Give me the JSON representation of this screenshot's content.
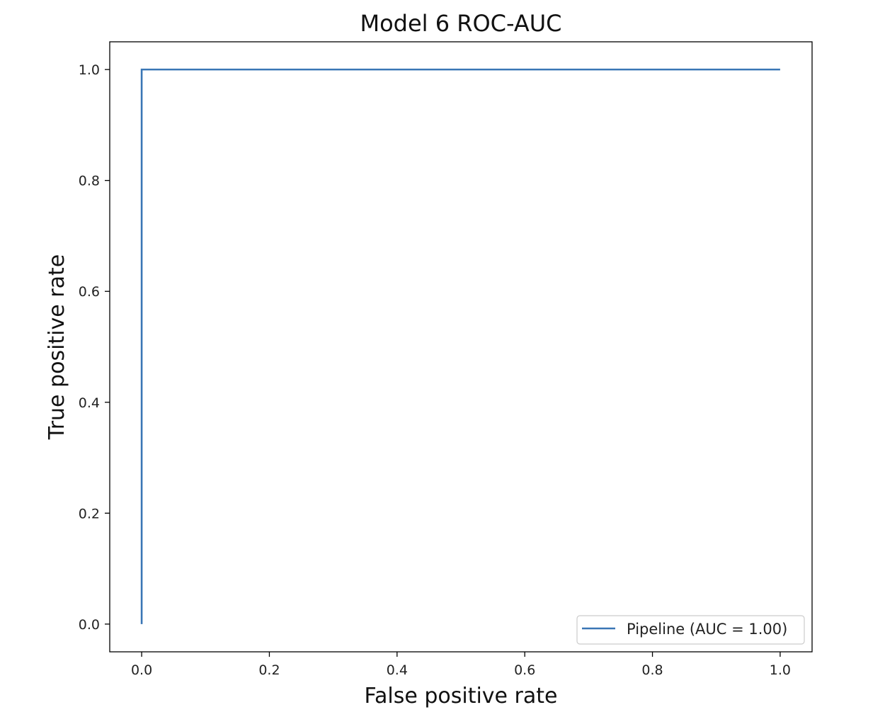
{
  "chart_data": {
    "type": "line",
    "title": "Model 6 ROC-AUC",
    "xlabel": "False positive rate",
    "ylabel": "True positive rate",
    "xlim": [
      -0.05,
      1.05
    ],
    "ylim": [
      -0.05,
      1.05
    ],
    "xticks": [
      0.0,
      0.2,
      0.4,
      0.6,
      0.8,
      1.0
    ],
    "xtick_labels": [
      "0.0",
      "0.2",
      "0.4",
      "0.6",
      "0.8",
      "1.0"
    ],
    "yticks": [
      0.0,
      0.2,
      0.4,
      0.6,
      0.8,
      1.0
    ],
    "ytick_labels": [
      "0.0",
      "0.2",
      "0.4",
      "0.6",
      "0.8",
      "1.0"
    ],
    "grid": false,
    "legend_position": "lower-right",
    "series": [
      {
        "name": "Pipeline (AUC = 1.00)",
        "color": "#3a76b5",
        "x": [
          0.0,
          0.0,
          1.0
        ],
        "y": [
          0.0,
          1.0,
          1.0
        ]
      }
    ]
  }
}
